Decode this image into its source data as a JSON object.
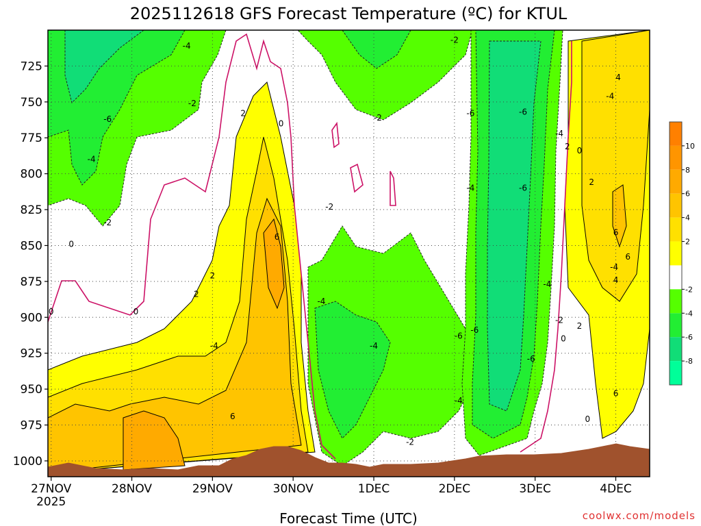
{
  "chart_data": {
    "type": "heatmap",
    "title": "2025112618 GFS Forecast Temperature (ºC) for KTUL",
    "xlabel": "Forecast Time (UTC)",
    "ylabel": "",
    "x_ticks": [
      {
        "label": "27NOV",
        "sub": "2025",
        "value": 0
      },
      {
        "label": "28NOV",
        "sub": "",
        "value": 1
      },
      {
        "label": "29NOV",
        "sub": "",
        "value": 2
      },
      {
        "label": "30NOV",
        "sub": "",
        "value": 3
      },
      {
        "label": "1DEC",
        "sub": "",
        "value": 4
      },
      {
        "label": "2DEC",
        "sub": "",
        "value": 5
      },
      {
        "label": "3DEC",
        "sub": "",
        "value": 6
      },
      {
        "label": "4DEC",
        "sub": "",
        "value": 7
      }
    ],
    "xlim": [
      -0.04,
      7.42
    ],
    "y_ticks": [
      725,
      750,
      775,
      800,
      825,
      850,
      875,
      900,
      925,
      950,
      975,
      1000
    ],
    "ylim": [
      1011,
      700
    ],
    "ylog": false,
    "grid": true,
    "colorbar": {
      "labels": [
        "10",
        "8",
        "6",
        "4",
        "2",
        "-2",
        "-4",
        "-6",
        "-8"
      ],
      "bins": [
        {
          "color": "#ff8000",
          "value": 11
        },
        {
          "color": "#ff9500",
          "value": 9
        },
        {
          "color": "#ffaa00",
          "value": 7
        },
        {
          "color": "#ffc400",
          "value": 5
        },
        {
          "color": "#ffe000",
          "value": 3
        },
        {
          "color": "#ffff00",
          "value": 1
        },
        {
          "color": "#ffffff",
          "value": 0
        },
        {
          "color": "#55ff00",
          "value": -3
        },
        {
          "color": "#22ee33",
          "value": -5
        },
        {
          "color": "#11dd77",
          "value": -7
        },
        {
          "color": "#00ff99",
          "value": -9
        }
      ]
    },
    "zero_line_color": "#cc1166",
    "terrain_color": "#a0522d",
    "contour_labels": [
      {
        "text": "-4",
        "x": 1.68,
        "p": 711
      },
      {
        "text": "-6",
        "x": 0.7,
        "p": 762
      },
      {
        "text": "-4",
        "x": 0.5,
        "p": 790
      },
      {
        "text": "-2",
        "x": 1.75,
        "p": 751
      },
      {
        "text": "-2",
        "x": 0.7,
        "p": 834
      },
      {
        "text": "0",
        "x": 0.25,
        "p": 849
      },
      {
        "text": "0",
        "x": 0.0,
        "p": 896
      },
      {
        "text": "0",
        "x": 1.05,
        "p": 896
      },
      {
        "text": "2",
        "x": 1.8,
        "p": 884
      },
      {
        "text": "2",
        "x": 2.0,
        "p": 871
      },
      {
        "text": "2",
        "x": 2.38,
        "p": 758
      },
      {
        "text": "0",
        "x": 2.85,
        "p": 765
      },
      {
        "text": "6",
        "x": 2.8,
        "p": 844
      },
      {
        "text": "-4",
        "x": 2.02,
        "p": 920
      },
      {
        "text": "6",
        "x": 2.25,
        "p": 969
      },
      {
        "text": "-2",
        "x": 3.45,
        "p": 823
      },
      {
        "text": "-4",
        "x": 3.35,
        "p": 889
      },
      {
        "text": "-2",
        "x": 4.05,
        "p": 761
      },
      {
        "text": "-4",
        "x": 4.0,
        "p": 920
      },
      {
        "text": "-2",
        "x": 4.45,
        "p": 987
      },
      {
        "text": "-2",
        "x": 5.0,
        "p": 707
      },
      {
        "text": "-6",
        "x": 5.2,
        "p": 758
      },
      {
        "text": "-4",
        "x": 5.2,
        "p": 810
      },
      {
        "text": "-6",
        "x": 5.85,
        "p": 810
      },
      {
        "text": "-6",
        "x": 5.85,
        "p": 757
      },
      {
        "text": "-4",
        "x": 6.3,
        "p": 772
      },
      {
        "text": "2",
        "x": 6.4,
        "p": 781
      },
      {
        "text": "-6",
        "x": 5.05,
        "p": 913
      },
      {
        "text": "-6",
        "x": 5.25,
        "p": 909
      },
      {
        "text": "-4",
        "x": 5.05,
        "p": 958
      },
      {
        "text": "-6",
        "x": 5.95,
        "p": 929
      },
      {
        "text": "-4",
        "x": 6.15,
        "p": 877
      },
      {
        "text": "-2",
        "x": 6.3,
        "p": 902
      },
      {
        "text": "0",
        "x": 6.35,
        "p": 915
      },
      {
        "text": "0",
        "x": 6.55,
        "p": 784
      },
      {
        "text": "2",
        "x": 6.7,
        "p": 806
      },
      {
        "text": "2",
        "x": 6.55,
        "p": 906
      },
      {
        "text": "0",
        "x": 6.65,
        "p": 971
      },
      {
        "text": "-4",
        "x": 6.93,
        "p": 746
      },
      {
        "text": "4",
        "x": 7.03,
        "p": 733
      },
      {
        "text": "6",
        "x": 7.0,
        "p": 841
      },
      {
        "text": "-4",
        "x": 6.98,
        "p": 865
      },
      {
        "text": "6",
        "x": 7.15,
        "p": 858
      },
      {
        "text": "4",
        "x": 7.0,
        "p": 874
      },
      {
        "text": "6",
        "x": 7.0,
        "p": 953
      }
    ],
    "credit": "coolwx.com/models"
  }
}
